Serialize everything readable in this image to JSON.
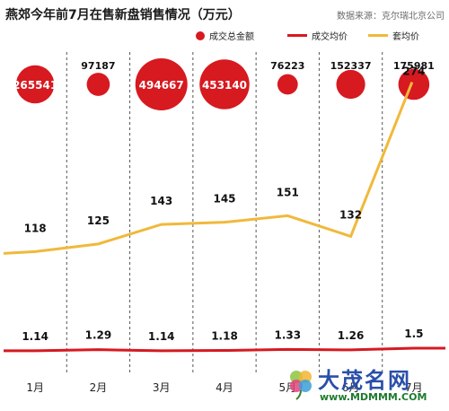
{
  "title": "燕郊今年前7月在售新盘销售情况（万元）",
  "source": "数据来源：克尔瑞北京公司",
  "legend": [
    {
      "label": "成交总金额",
      "kind": "dot",
      "color": "#d71920"
    },
    {
      "label": "成交均价",
      "kind": "line",
      "color": "#d71920"
    },
    {
      "label": "套均价",
      "kind": "line",
      "color": "#f0b93a"
    }
  ],
  "watermark": {
    "text": "大茂名网",
    "url": "www.MDMMM.COM"
  },
  "chart_data": {
    "type": "line",
    "categories": [
      "1月",
      "2月",
      "3月",
      "4月",
      "5月",
      "6月",
      "7月"
    ],
    "series": [
      {
        "name": "成交总金额",
        "values": [
          265541,
          97187,
          494667,
          453140,
          76223,
          152337,
          175981
        ],
        "color": "#d71920",
        "labels": [
          "265541",
          "97187",
          "494667",
          "453140",
          "76223",
          "152337",
          "175981"
        ]
      },
      {
        "name": "成交均价",
        "values": [
          1.14,
          1.29,
          1.14,
          1.18,
          1.33,
          1.26,
          1.5
        ],
        "color": "#d71920",
        "labels": [
          "1.14",
          "1.29",
          "1.14",
          "1.18",
          "1.33",
          "1.26",
          "1.5"
        ]
      },
      {
        "name": "套均价",
        "values": [
          118,
          125,
          143,
          145,
          151,
          132,
          274
        ],
        "color": "#f0b93a",
        "labels": [
          "118",
          "125",
          "143",
          "145",
          "151",
          "132",
          "274"
        ]
      }
    ],
    "grid": "dashed vertical separators",
    "legend": "top"
  }
}
